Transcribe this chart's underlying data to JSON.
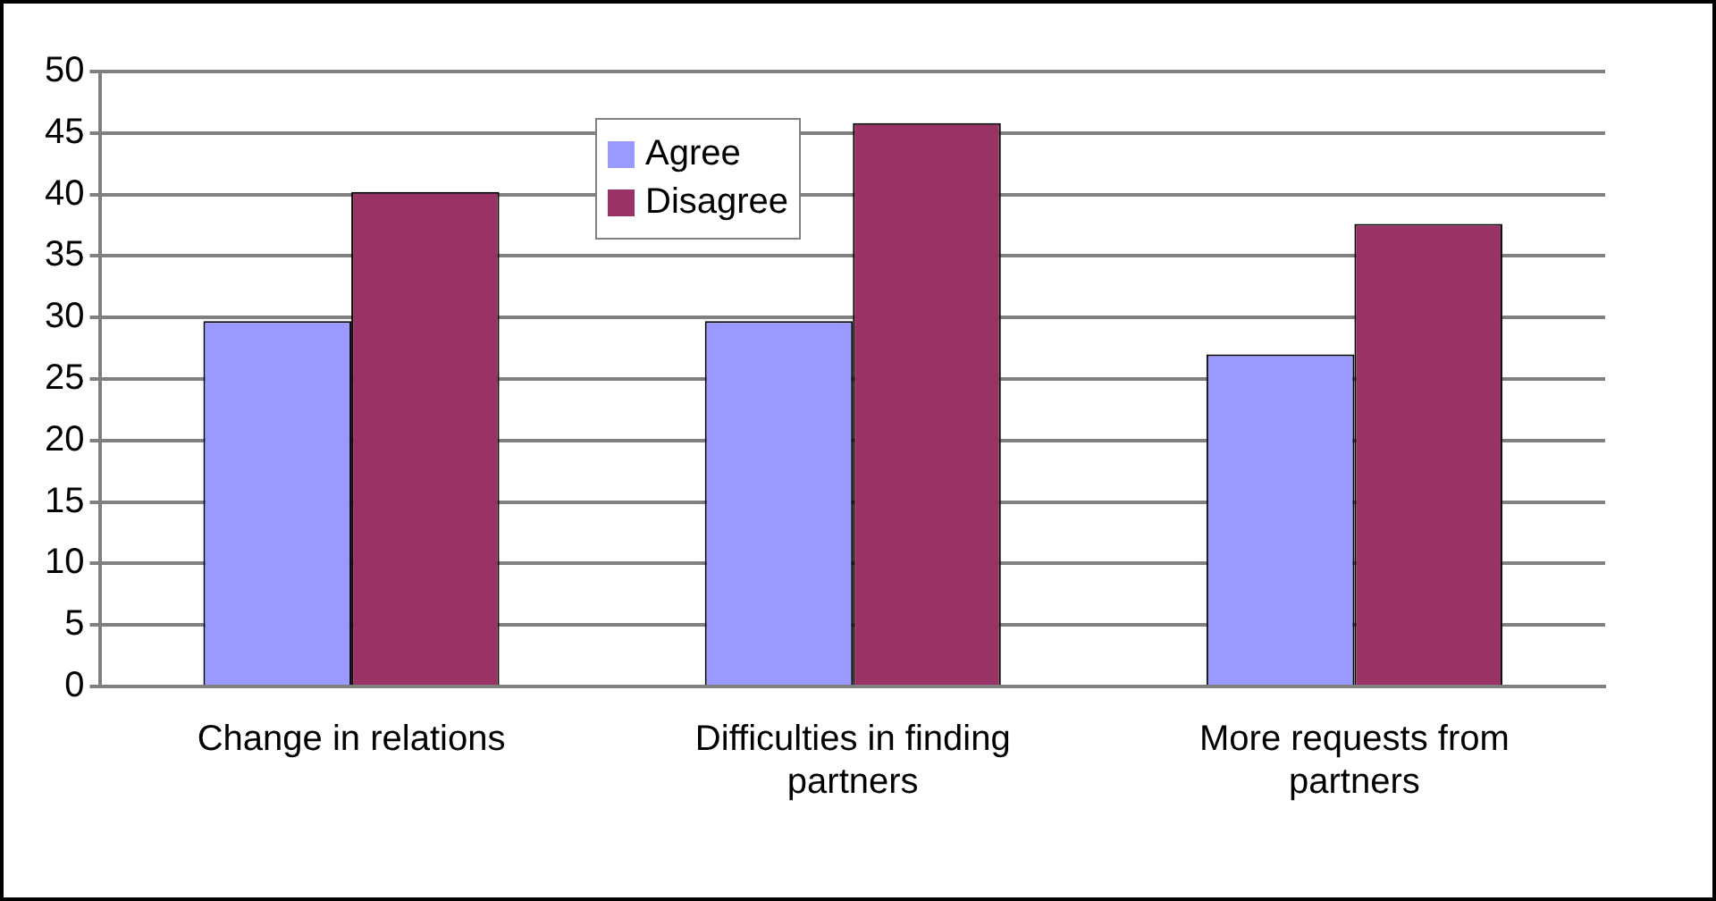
{
  "chart_data": {
    "type": "bar",
    "categories": [
      "Change in relations",
      "Difficulties in finding partners",
      "More requests from partners"
    ],
    "series": [
      {
        "name": "Agree",
        "color": "#9999ff",
        "values": [
          29.7,
          29.7,
          27
        ]
      },
      {
        "name": "Disagree",
        "color": "#993366",
        "values": [
          40.2,
          45.8,
          37.6
        ]
      }
    ],
    "ylim": [
      0,
      50
    ],
    "yticks": [
      0,
      5,
      10,
      15,
      20,
      25,
      30,
      35,
      40,
      45,
      50
    ],
    "grid": "y",
    "legend": "top"
  }
}
